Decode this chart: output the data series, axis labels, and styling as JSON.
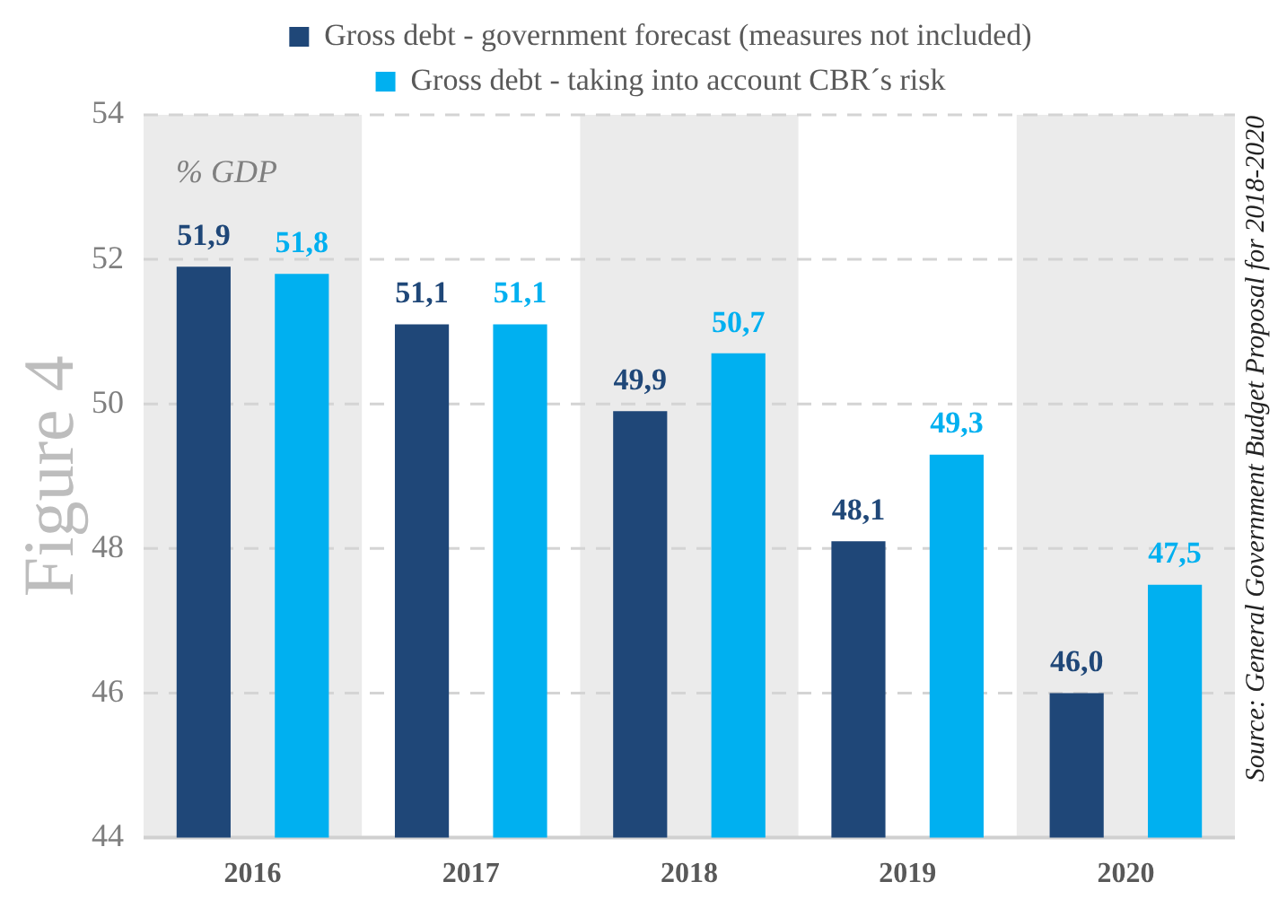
{
  "chart_data": {
    "type": "bar",
    "ylabel": "% GDP",
    "categories": [
      "2016",
      "2017",
      "2018",
      "2019",
      "2020"
    ],
    "series": [
      {
        "name": "Gross debt - government forecast (measures not included)",
        "color": "#1f4778",
        "values": [
          51.9,
          51.1,
          49.9,
          48.1,
          46.0
        ],
        "value_labels": [
          "51,9",
          "51,1",
          "49,9",
          "48,1",
          "46,0"
        ]
      },
      {
        "name": "Gross debt - taking into account CBR´s risk",
        "color": "#00b0f0",
        "values": [
          51.8,
          51.1,
          50.7,
          49.3,
          47.5
        ],
        "value_labels": [
          "51,8",
          "51,1",
          "50,7",
          "49,3",
          "47,5"
        ]
      }
    ],
    "ylim": [
      44,
      54
    ],
    "yticks": [
      44,
      46,
      48,
      50,
      52,
      54
    ],
    "grid": "y",
    "legend": "top",
    "bands": [
      {
        "axis": "x",
        "from": "2016",
        "to": "2016",
        "color": "#ebebeb"
      },
      {
        "axis": "x",
        "from": "2018",
        "to": "2018",
        "color": "#ebebeb"
      },
      {
        "axis": "x",
        "from": "2020",
        "to": "2020",
        "color": "#ebebeb"
      }
    ],
    "annotations": [
      "Figure 4",
      "Source: General Government Budget Proposal for 2018-2020"
    ]
  }
}
